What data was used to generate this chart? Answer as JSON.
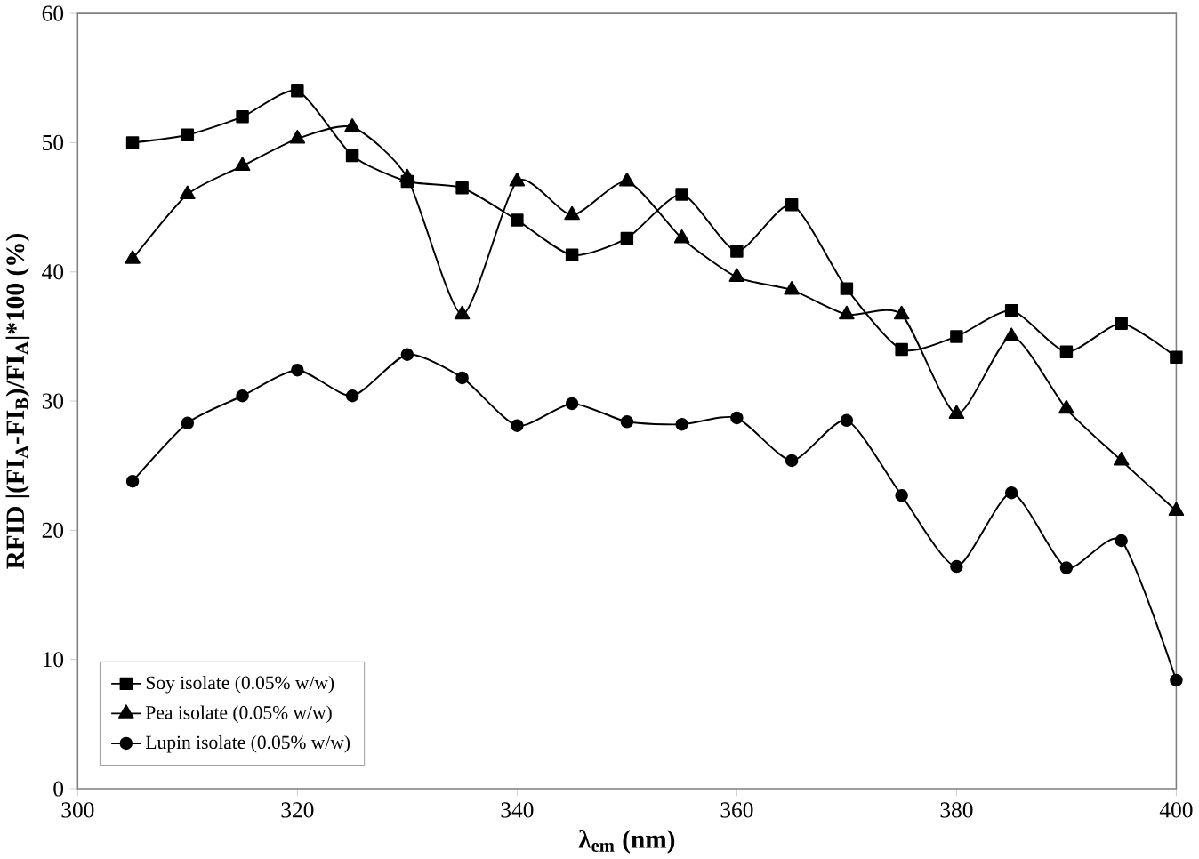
{
  "chart_data": {
    "type": "line",
    "xlabel": "λ$_{em}$ (nm)",
    "ylabel": "RFID |(FI$_{A}$-FI$_{B}$)/FI$_{A}$|*100 (%)",
    "x": [
      305,
      310,
      315,
      320,
      325,
      330,
      335,
      340,
      345,
      350,
      355,
      360,
      365,
      370,
      375,
      380,
      385,
      390,
      395,
      400
    ],
    "series": [
      {
        "name": "Soy isolate (0.05% w/w)",
        "color": "#000000",
        "marker": "square",
        "values": [
          50,
          50.6,
          52,
          54,
          49,
          47,
          46.5,
          44,
          41.3,
          42.6,
          46,
          41.6,
          45.2,
          38.7,
          34,
          35,
          37,
          33.8,
          36,
          33.4
        ]
      },
      {
        "name": "Pea isolate (0.05% w/w)",
        "color": "#000000",
        "marker": "triangle",
        "values": [
          41,
          46,
          48.2,
          50.3,
          51.2,
          47.3,
          36.7,
          47,
          44.4,
          47,
          42.6,
          39.6,
          38.6,
          36.7,
          36.7,
          29,
          35,
          29.4,
          25.4,
          21.5
        ]
      },
      {
        "name": "Lupin isolate (0.05% w/w)",
        "color": "#000000",
        "marker": "circle",
        "values": [
          23.8,
          28.3,
          30.4,
          32.4,
          30.4,
          33.6,
          31.8,
          28.1,
          29.8,
          28.4,
          28.2,
          28.7,
          25.4,
          28.5,
          22.7,
          17.2,
          22.9,
          17.1,
          19.2,
          8.4
        ]
      }
    ],
    "xlim": [
      300,
      400
    ],
    "xticks": [
      300,
      320,
      340,
      360,
      380,
      400
    ],
    "ylim": [
      0,
      60
    ],
    "yticks": [
      0,
      10,
      20,
      30,
      40,
      50,
      60
    ],
    "grid": false,
    "legend": "bottom left"
  }
}
